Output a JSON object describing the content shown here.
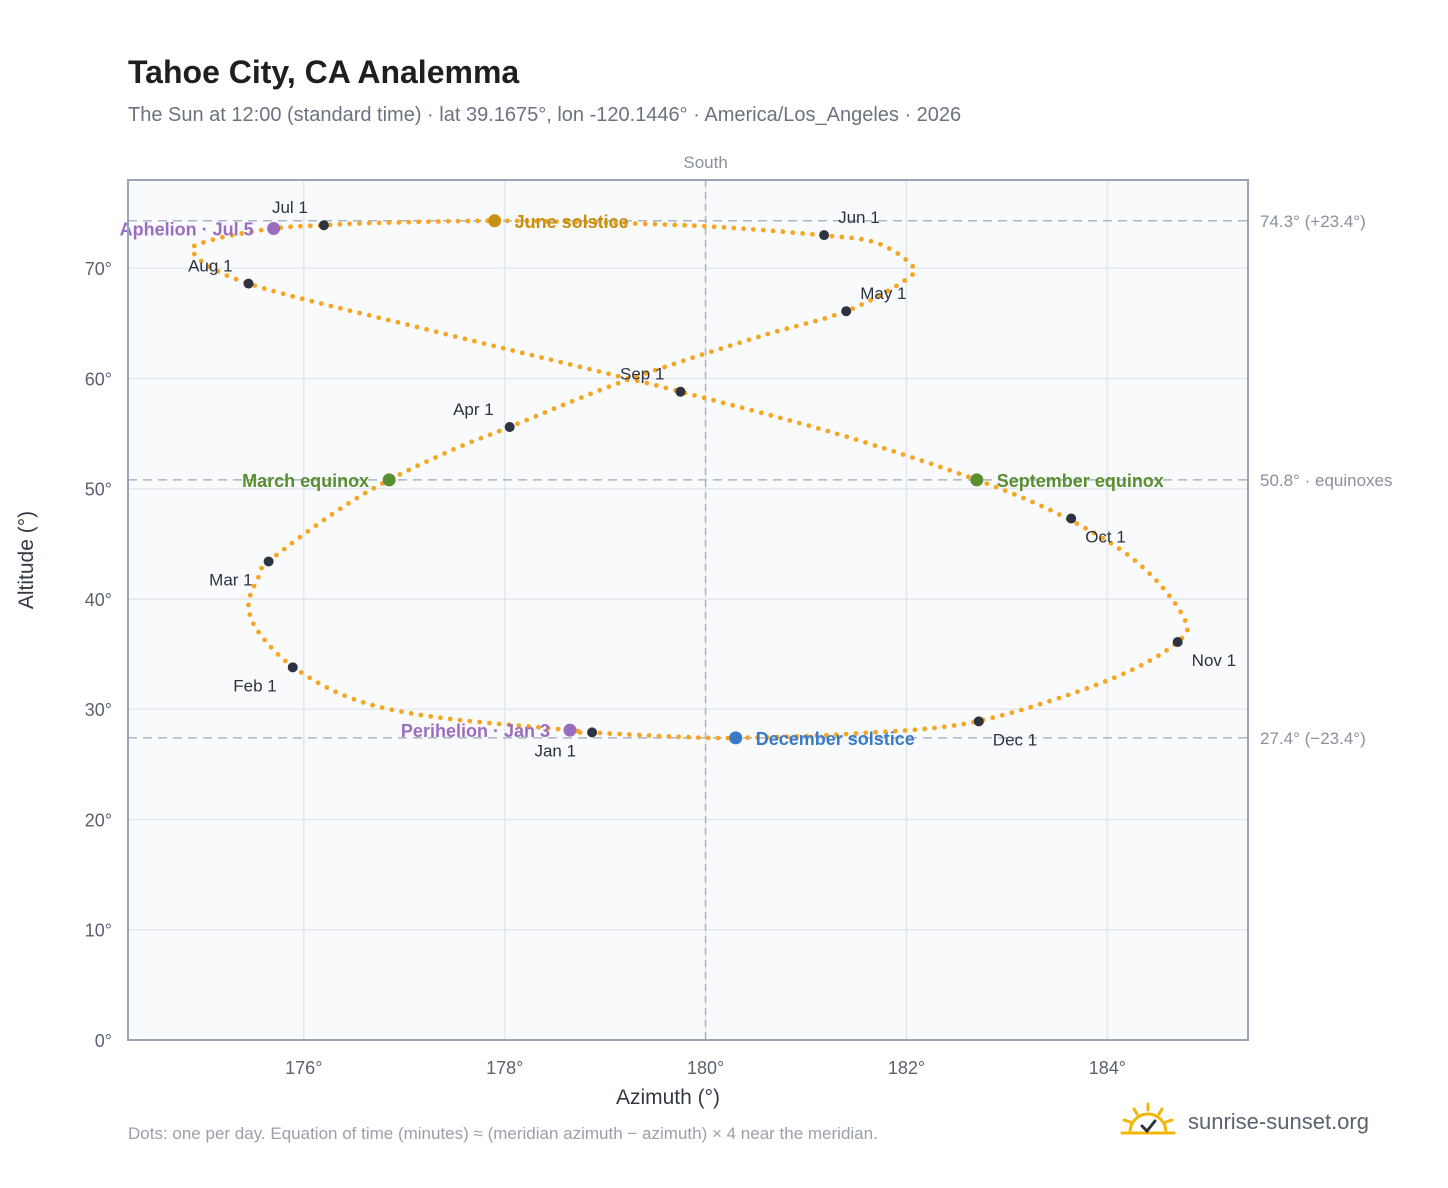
{
  "title": "Tahoe City, CA Analemma",
  "subtitle": "The Sun at 12:00 (standard time) · lat 39.1675°, lon -120.1446° · America/Los_Angeles · 2026",
  "footnote": "Dots: one per day. Equation of time (minutes) ≈ (meridian azimuth − azimuth) × 4 near the meridian.",
  "brand": {
    "text": "sunrise-sunset.org",
    "icon": "sun-check-icon"
  },
  "colors": {
    "path": "#f5a623",
    "month_marker": "#2d3340",
    "june_solstice": "#c8900f",
    "december_solstice": "#3a7bc8",
    "equinox": "#5a8f2f",
    "apsides": "#9b6dbf",
    "plot_bg": "#f8fafc",
    "grid": "#e3e8ee",
    "ref_line": "#aab6c4"
  },
  "chart_data": {
    "type": "scatter",
    "xlabel": "Azimuth (°)",
    "ylabel": "Altitude (°)",
    "xlim": [
      174.25,
      185.4
    ],
    "ylim": [
      0,
      78
    ],
    "xticks": [
      176,
      178,
      180,
      182,
      184
    ],
    "xtick_labels": [
      "176°",
      "178°",
      "180°",
      "182°",
      "184°"
    ],
    "yticks": [
      0,
      10,
      20,
      30,
      40,
      50,
      60,
      70
    ],
    "ytick_labels": [
      "0°",
      "10°",
      "20°",
      "30°",
      "40°",
      "50°",
      "60°",
      "70°"
    ],
    "grid": true,
    "meridian": {
      "azimuth": 180,
      "label": "South"
    },
    "reference_lines": [
      {
        "altitude": 74.3,
        "label": "74.3° (+23.4°)"
      },
      {
        "altitude": 50.8,
        "label": "50.8° · equinoxes"
      },
      {
        "altitude": 27.4,
        "label": "27.4° (−23.4°)"
      }
    ],
    "daily_path_keypoints": [
      {
        "az": 178.75,
        "alt": 27.9
      },
      {
        "az": 178.65,
        "alt": 28.1
      },
      {
        "az": 177.3,
        "alt": 29.3
      },
      {
        "az": 176.5,
        "alt": 30.9
      },
      {
        "az": 175.9,
        "alt": 33.8
      },
      {
        "az": 175.55,
        "alt": 37.0
      },
      {
        "az": 175.45,
        "alt": 39.5
      },
      {
        "az": 175.55,
        "alt": 42.0
      },
      {
        "az": 175.65,
        "alt": 43.4
      },
      {
        "az": 176.3,
        "alt": 47.8
      },
      {
        "az": 176.85,
        "alt": 50.8
      },
      {
        "az": 177.5,
        "alt": 53.6
      },
      {
        "az": 178.05,
        "alt": 55.6
      },
      {
        "az": 179.2,
        "alt": 59.8
      },
      {
        "az": 180.5,
        "alt": 63.7
      },
      {
        "az": 181.4,
        "alt": 66.1
      },
      {
        "az": 182.0,
        "alt": 69.0
      },
      {
        "az": 182.05,
        "alt": 70.3
      },
      {
        "az": 181.7,
        "alt": 72.3
      },
      {
        "az": 181.15,
        "alt": 73.0
      },
      {
        "az": 180.0,
        "alt": 73.8
      },
      {
        "az": 178.85,
        "alt": 74.15
      },
      {
        "az": 177.9,
        "alt": 74.3
      },
      {
        "az": 176.7,
        "alt": 74.1
      },
      {
        "az": 176.2,
        "alt": 73.9
      },
      {
        "az": 175.7,
        "alt": 73.6
      },
      {
        "az": 175.1,
        "alt": 72.6
      },
      {
        "az": 174.9,
        "alt": 71.4
      },
      {
        "az": 175.45,
        "alt": 68.6
      },
      {
        "az": 177.2,
        "alt": 64.5
      },
      {
        "az": 179.0,
        "alt": 60.5
      },
      {
        "az": 179.75,
        "alt": 58.8
      },
      {
        "az": 181.3,
        "alt": 55.0
      },
      {
        "az": 182.7,
        "alt": 50.8
      },
      {
        "az": 183.6,
        "alt": 47.3
      },
      {
        "az": 184.3,
        "alt": 43.3
      },
      {
        "az": 184.75,
        "alt": 38.5
      },
      {
        "az": 184.7,
        "alt": 36.1
      },
      {
        "az": 184.0,
        "alt": 32.6
      },
      {
        "az": 182.7,
        "alt": 28.9
      },
      {
        "az": 181.5,
        "alt": 27.8
      },
      {
        "az": 180.3,
        "alt": 27.4
      },
      {
        "az": 179.6,
        "alt": 27.55
      },
      {
        "az": 178.85,
        "alt": 27.9
      }
    ],
    "month_markers": [
      {
        "label": "Jan 1",
        "az": 178.87,
        "alt": 27.9,
        "anchor": "below-left"
      },
      {
        "label": "Feb 1",
        "az": 175.89,
        "alt": 33.8,
        "anchor": "below-left"
      },
      {
        "label": "Mar 1",
        "az": 175.65,
        "alt": 43.4,
        "anchor": "below-left"
      },
      {
        "label": "Apr 1",
        "az": 178.05,
        "alt": 55.6,
        "anchor": "above-left"
      },
      {
        "label": "May 1",
        "az": 181.4,
        "alt": 66.1,
        "anchor": "above-right"
      },
      {
        "label": "Jun 1",
        "az": 181.18,
        "alt": 73.0,
        "anchor": "above-right"
      },
      {
        "label": "Jul 1",
        "az": 176.2,
        "alt": 73.9,
        "anchor": "above-left"
      },
      {
        "label": "Aug 1",
        "az": 175.45,
        "alt": 68.6,
        "anchor": "above-left"
      },
      {
        "label": "Sep 1",
        "az": 179.75,
        "alt": 58.8,
        "anchor": "above-left"
      },
      {
        "label": "Oct 1",
        "az": 183.64,
        "alt": 47.3,
        "anchor": "below-right"
      },
      {
        "label": "Nov 1",
        "az": 184.7,
        "alt": 36.1,
        "anchor": "below-right"
      },
      {
        "label": "Dec 1",
        "az": 182.72,
        "alt": 28.9,
        "anchor": "below-right"
      }
    ],
    "events": [
      {
        "label": "June solstice",
        "az": 177.9,
        "alt": 74.3,
        "color": "#c8900f",
        "side": "right"
      },
      {
        "label": "December solstice",
        "az": 180.3,
        "alt": 27.4,
        "color": "#3a7bc8",
        "side": "right"
      },
      {
        "label": "March equinox",
        "az": 176.85,
        "alt": 50.8,
        "color": "#5a8f2f",
        "side": "left"
      },
      {
        "label": "September equinox",
        "az": 182.7,
        "alt": 50.8,
        "color": "#5a8f2f",
        "side": "right"
      },
      {
        "label": "Aphelion · Jul 5",
        "az": 175.7,
        "alt": 73.6,
        "color": "#9b6dbf",
        "side": "left"
      },
      {
        "label": "Perihelion · Jan 3",
        "az": 178.65,
        "alt": 28.1,
        "color": "#9b6dbf",
        "side": "left"
      }
    ]
  }
}
